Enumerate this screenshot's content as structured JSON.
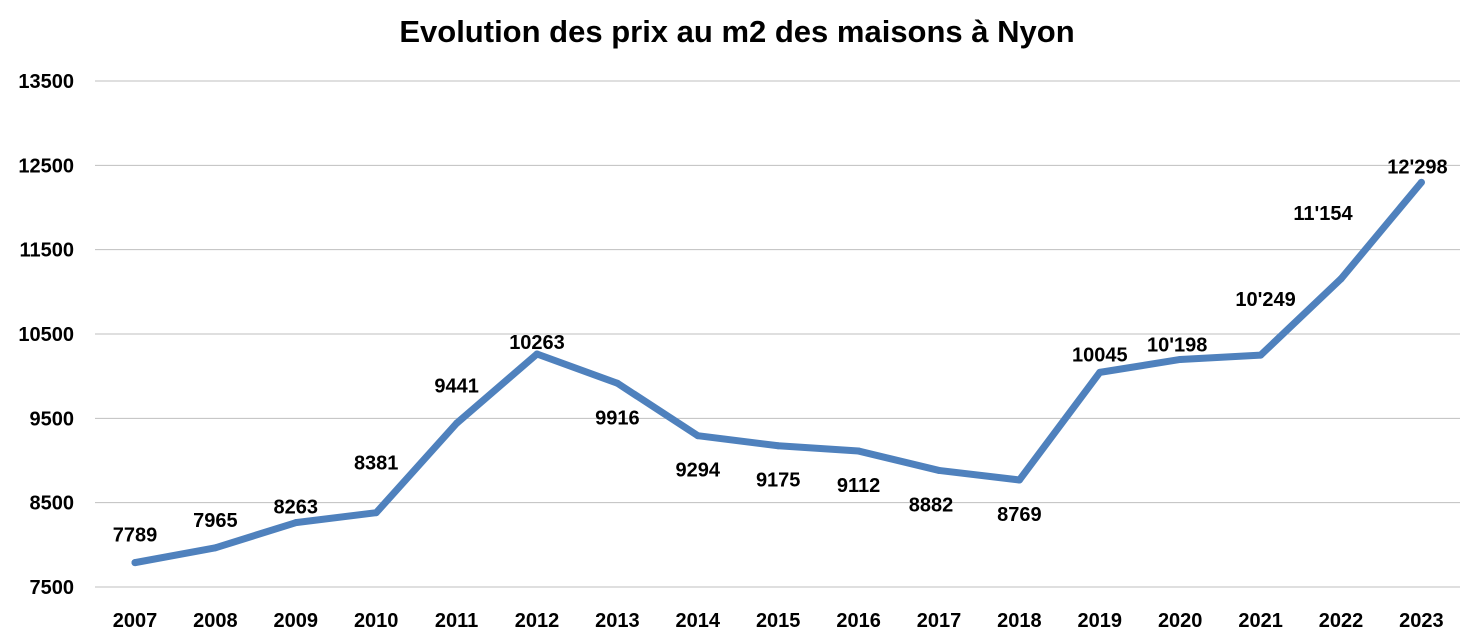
{
  "chart_data": {
    "type": "line",
    "title": "Evolution des prix au m2 des maisons à Nyon",
    "xlabel": "",
    "ylabel": "",
    "categories": [
      "2007",
      "2008",
      "2009",
      "2010",
      "2011",
      "2012",
      "2013",
      "2014",
      "2015",
      "2016",
      "2017",
      "2018",
      "2019",
      "2020",
      "2021",
      "2022",
      "2023"
    ],
    "series": [
      {
        "values": [
          7789,
          7965,
          8263,
          8381,
          9441,
          10263,
          9916,
          9294,
          9175,
          9112,
          8882,
          8769,
          10045,
          10198,
          10249,
          11154,
          12298
        ],
        "data_labels": [
          "7789",
          "7965",
          "8263",
          "8381",
          "9441",
          "10263",
          "9916",
          "9294",
          "9175",
          "9112",
          "8882",
          "8769",
          "10045",
          "10'198",
          "10'249",
          "11'154",
          "12'298"
        ],
        "color": "#4f81bd"
      }
    ],
    "y_ticks": [
      "7500",
      "8500",
      "9500",
      "10500",
      "11500",
      "12500",
      "13500"
    ],
    "ylim": [
      7500,
      13500
    ],
    "grid": true,
    "legend": "none",
    "colors": {
      "line": "#4f81bd",
      "grid": "#bfbfbf",
      "text": "#000000"
    }
  }
}
